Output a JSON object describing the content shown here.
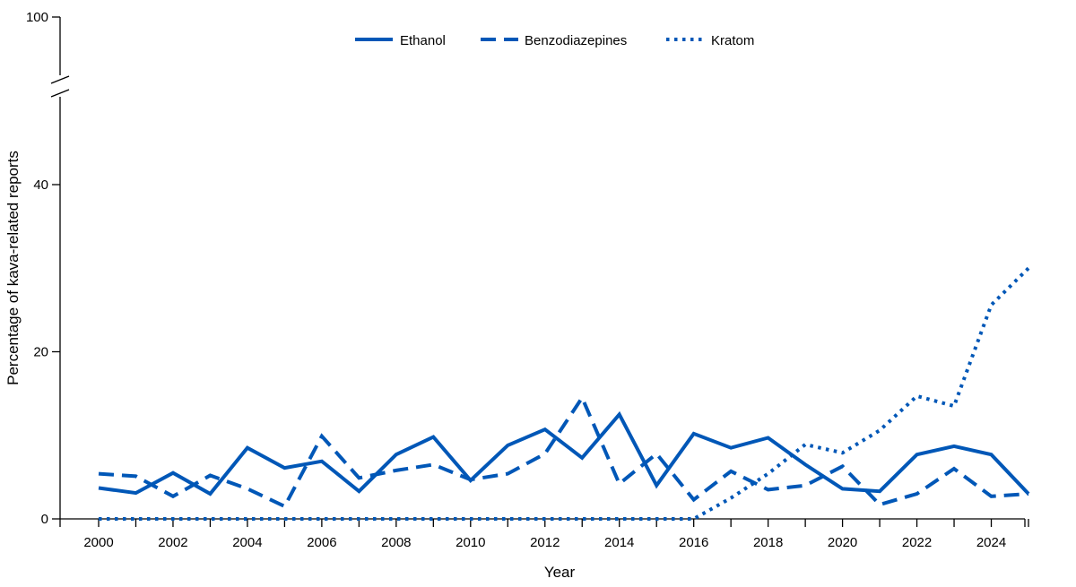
{
  "chart_data": {
    "type": "line",
    "title": "",
    "xlabel": "Year",
    "ylabel": "Percentage of kava-related reports",
    "x": [
      2000,
      2001,
      2002,
      2003,
      2004,
      2005,
      2006,
      2007,
      2008,
      2009,
      2010,
      2011,
      2012,
      2013,
      2014,
      2015,
      2016,
      2017,
      2018,
      2019,
      2020,
      2021,
      2022,
      2023,
      2024,
      2025
    ],
    "x_tick_labels": [
      "2000",
      "2002",
      "2004",
      "2006",
      "2008",
      "2010",
      "2012",
      "2014",
      "2016",
      "2018",
      "2020",
      "2022",
      "2024"
    ],
    "y_tick_labels": [
      "0",
      "20",
      "40",
      "100"
    ],
    "ylim": [
      0,
      100
    ],
    "y_axis_break": [
      50,
      100
    ],
    "grid": false,
    "legend_position": "top-center",
    "color": "#0057b7",
    "series": [
      {
        "name": "Ethanol",
        "style": "solid",
        "values": [
          3.7,
          3.1,
          5.5,
          3.0,
          8.5,
          6.1,
          6.9,
          3.3,
          7.7,
          9.8,
          4.6,
          8.8,
          10.7,
          7.3,
          12.5,
          4.0,
          10.2,
          8.5,
          9.7,
          6.5,
          3.6,
          3.3,
          7.7,
          8.7,
          7.7,
          3.0
        ]
      },
      {
        "name": "Benzodiazepines",
        "style": "dashed",
        "values": [
          5.4,
          5.1,
          2.7,
          5.2,
          3.6,
          1.5,
          9.9,
          4.9,
          5.8,
          6.5,
          4.7,
          5.4,
          7.8,
          14.5,
          4.2,
          7.8,
          2.3,
          5.7,
          3.5,
          4.0,
          6.3,
          1.7,
          3.0,
          6.0,
          2.7,
          3.0
        ]
      },
      {
        "name": "Kratom",
        "style": "dotted",
        "values": [
          0,
          0,
          0,
          0,
          0,
          0,
          0,
          0,
          0,
          0,
          0,
          0,
          0,
          0,
          0,
          0,
          0,
          2.5,
          5.4,
          8.9,
          7.9,
          10.6,
          14.7,
          13.5,
          25.6,
          30.0
        ]
      }
    ]
  }
}
